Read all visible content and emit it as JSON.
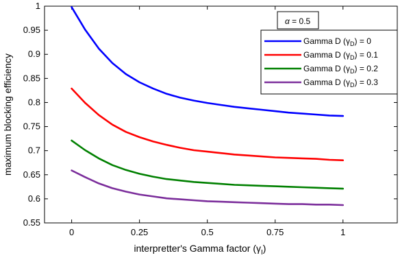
{
  "chart_data": {
    "type": "line",
    "title": "",
    "xlabel": "interpretter's Gamma factor (γ",
    "xlabel_sub": "I",
    "xlabel_close": ")",
    "ylabel": "maximum blocking efficiency",
    "xlim": [
      -0.1,
      1.2
    ],
    "ylim": [
      0.55,
      1.0
    ],
    "xticks": [
      0,
      0.25,
      0.5,
      0.75,
      1
    ],
    "xtick_labels": [
      "0",
      "0.25",
      "0.5",
      "0.75",
      "1"
    ],
    "yticks": [
      0.55,
      0.6,
      0.65,
      0.7,
      0.75,
      0.8,
      0.85,
      0.9,
      0.95,
      1.0
    ],
    "ytick_labels": [
      "0.55",
      "0.6",
      "0.65",
      "0.7",
      "0.75",
      "0.8",
      "0.85",
      "0.9",
      "0.95",
      "1"
    ],
    "grid": false,
    "legend_position": "top-right",
    "annotation": {
      "symbol": "α",
      "text": " = 0.5"
    },
    "x": [
      0,
      0.05,
      0.1,
      0.15,
      0.2,
      0.25,
      0.3,
      0.35,
      0.4,
      0.45,
      0.5,
      0.55,
      0.6,
      0.65,
      0.7,
      0.75,
      0.8,
      0.85,
      0.9,
      0.95,
      1.0
    ],
    "series": [
      {
        "legend_prefix": "Gamma D (γ",
        "legend_sub": "D",
        "legend_suffix": ") = 0",
        "color": "#0000ff",
        "values": [
          0.998,
          0.951,
          0.912,
          0.882,
          0.859,
          0.842,
          0.829,
          0.818,
          0.81,
          0.804,
          0.799,
          0.795,
          0.791,
          0.788,
          0.785,
          0.782,
          0.779,
          0.777,
          0.775,
          0.773,
          0.772
        ]
      },
      {
        "legend_prefix": "Gamma D (γ",
        "legend_sub": "D",
        "legend_suffix": ") = 0.1",
        "color": "#ff0000",
        "values": [
          0.829,
          0.799,
          0.774,
          0.754,
          0.739,
          0.728,
          0.719,
          0.712,
          0.706,
          0.701,
          0.698,
          0.695,
          0.692,
          0.69,
          0.688,
          0.686,
          0.685,
          0.684,
          0.683,
          0.681,
          0.68
        ]
      },
      {
        "legend_prefix": "Gamma D (γ",
        "legend_sub": "D",
        "legend_suffix": ") = 0.2",
        "color": "#008000",
        "values": [
          0.721,
          0.701,
          0.684,
          0.67,
          0.66,
          0.652,
          0.646,
          0.641,
          0.638,
          0.635,
          0.633,
          0.631,
          0.629,
          0.628,
          0.627,
          0.626,
          0.625,
          0.624,
          0.623,
          0.622,
          0.621
        ]
      },
      {
        "legend_prefix": "Gamma D (γ",
        "legend_sub": "D",
        "legend_suffix": ") = 0.3",
        "color": "#7b2d9b",
        "values": [
          0.659,
          0.645,
          0.632,
          0.622,
          0.615,
          0.609,
          0.605,
          0.601,
          0.599,
          0.597,
          0.595,
          0.594,
          0.593,
          0.592,
          0.591,
          0.59,
          0.589,
          0.589,
          0.588,
          0.588,
          0.587
        ]
      }
    ]
  }
}
